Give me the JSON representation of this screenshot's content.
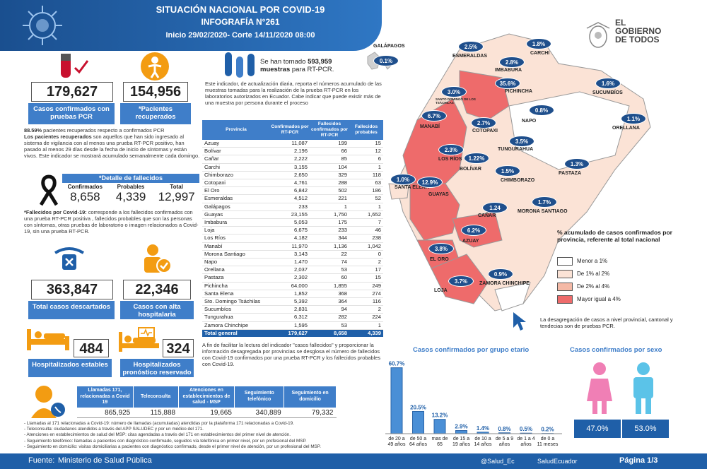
{
  "header": {
    "title": "SITUACIÓN NACIONAL POR  COVID-19",
    "subtitle": "INFOGRAFÍA N°261",
    "date": "Inicio 29/02/2020- Corte 14/11/2020 08:00"
  },
  "logo": {
    "line1": "EL",
    "line2": "GOBIERNO",
    "line3": "DE TODOS"
  },
  "confirmed": {
    "value": "179,627",
    "label": "Casos confirmados con pruebas PCR"
  },
  "recovered": {
    "value": "154,956",
    "label": "*Pacientes recuperados"
  },
  "recovered_note": {
    "pct": "88.59%",
    "t1": " pacientes recuperados respecto a confirmados PCR",
    "bold": "Los pacientes recuperados",
    "t2": " son aquellos que han sido ingresado al sistema de vigilancia con al menos una prueba RT-PCR positivo, han pasado al menos 29 días desde la fecha de inicio de síntomas y están vivos. Este indicador se mostrará acumulado semanalmente cada domingo."
  },
  "deaths": {
    "title": "*Detalle de fallecidos",
    "h_confirmed": "Confirmados",
    "h_probable": "Probables",
    "h_total": "Total",
    "confirmed": "8,658",
    "probable": "4,339",
    "total": "12,997"
  },
  "deaths_note": {
    "bold": "*Fallecidos por Covid-19:",
    "text": " corresponde a los fallecidos confirmados con una prueba RT-PCR positiva , fallecidos probables que son las personas con síntomas, otras pruebas de laboratorio o imagen relacionados a Covid-19, sin una prueba RT-PCR."
  },
  "discarded": {
    "value": "363,847",
    "label": "Total casos descartados"
  },
  "discharged": {
    "value": "22,346",
    "label": "Casos con alta hospitalaria"
  },
  "hosp_stable": {
    "value": "484",
    "label": "Hospitalizados estables"
  },
  "hosp_reserved": {
    "value": "324",
    "label": "Hospitalizados pronóstico reservado"
  },
  "tests": {
    "t1": "Se han tomado ",
    "value": "593,959",
    "t2": "muestras",
    "t3": " para RT-PCR."
  },
  "tests_note": "Este indicador, de actualización diaria, reporta el números acumulado de las muestras tomadas para la realización de la prueba RT-PCR en los laboratorios autorizados en Ecuador. Cabe indicar que puede existir más de una muestra por persona durante el proceso",
  "table": {
    "headers": [
      "Provincia",
      "Confirmados por RT-PCR",
      "Fallecidos confirmados por RT-PCR",
      "Fallecidos probables"
    ],
    "rows": [
      [
        "Azuay",
        "11,087",
        "199",
        "15"
      ],
      [
        "Bolívar",
        "2,196",
        "66",
        "12"
      ],
      [
        "Cañar",
        "2,222",
        "85",
        "6"
      ],
      [
        "Carchi",
        "3,155",
        "104",
        "1"
      ],
      [
        "Chimborazo",
        "2,650",
        "329",
        "118"
      ],
      [
        "Cotopaxi",
        "4,761",
        "288",
        "63"
      ],
      [
        "El Oro",
        "6,842",
        "502",
        "186"
      ],
      [
        "Esmeraldas",
        "4,512",
        "221",
        "52"
      ],
      [
        "Galápagos",
        "233",
        "1",
        "1"
      ],
      [
        "Guayas",
        "23,155",
        "1,750",
        "1,652"
      ],
      [
        "Imbabura",
        "5,053",
        "175",
        "7"
      ],
      [
        "Loja",
        "6,675",
        "233",
        "46"
      ],
      [
        "Los Ríos",
        "4,182",
        "344",
        "238"
      ],
      [
        "Manabí",
        "11,970",
        "1,136",
        "1,042"
      ],
      [
        "Morona Santiago",
        "3,143",
        "22",
        "0"
      ],
      [
        "Napo",
        "1,470",
        "74",
        "2"
      ],
      [
        "Orellana",
        "2,037",
        "53",
        "17"
      ],
      [
        "Pastaza",
        "2,302",
        "60",
        "15"
      ],
      [
        "Pichincha",
        "64,000",
        "1,855",
        "249"
      ],
      [
        "Santa Elena",
        "1,852",
        "368",
        "274"
      ],
      [
        "Sto. Domingo Tsáchilas",
        "5,392",
        "364",
        "116"
      ],
      [
        "Sucumbíos",
        "2,831",
        "94",
        "2"
      ],
      [
        "Tungurahua",
        "6,312",
        "282",
        "224"
      ],
      [
        "Zamora Chinchipe",
        "1,595",
        "53",
        "1"
      ]
    ],
    "total": [
      "Total general",
      "179,627",
      "8,658",
      "4,339"
    ]
  },
  "table_note": "A fin de facilitar la lectura del indicador \"casos fallecidos\" y proporcionar la información desagregada por provincias se desglosa el número de fallecidos con Covid-19 confirmados por una prueba RT-PCR y los fallecidos probables con Covid-19.",
  "calls": {
    "headers": [
      "Llamadas 171, relacionadas a Covid 19",
      "Teleconsulta",
      "Atenciones en establecimientos de salud - MSP",
      "Seguimiento telefónico",
      "Seguimiento en domicilio"
    ],
    "values": [
      "865,925",
      "115,888",
      "19,665",
      "340,889",
      "79,332"
    ]
  },
  "calls_notes": [
    "- Llamadas al 171 relacionadas a Covid-19: número de llamadas (acumuladas) atendidas por la plataforma 171 relacionadas a Covid-19.",
    "- Teleconsulta: ciudadanos atendidos a través del APP SALUDEC y por un médico del 171.",
    "- Atenciones en establecimientos de salud del MSP: citas agendadas a través del 171 en establecimientos del primer nivel de atención.",
    "- Seguimiento telefónico: llamadas a pacientes con diagnóstico confirmado, seguidos vía telefónica en primer nivel, por un profesional del MSP.",
    "- Seguimiento en domicilio: visitas domiciliarias a pacientes con diagnóstico confirmado, desde el primer nivel de atención, por un profesional del MSP."
  ],
  "map": {
    "provinces": [
      {
        "name": "GALÁPAGOS",
        "pct": "0.1%"
      },
      {
        "name": "ESMERALDAS",
        "pct": "2.5%"
      },
      {
        "name": "CARCHI",
        "pct": "1.8%"
      },
      {
        "name": "IMBABURA",
        "pct": "2.8%"
      },
      {
        "name": "SUCUMBÍOS",
        "pct": "1.6%"
      },
      {
        "name": "PICHINCHA",
        "pct": "35.6%"
      },
      {
        "name": "SANTO DOMINGO DE LOS TSÁCHILAS",
        "pct": "3.0%"
      },
      {
        "name": "MANABÍ",
        "pct": "6.7%"
      },
      {
        "name": "NAPO",
        "pct": "0.8%"
      },
      {
        "name": "ORELLANA",
        "pct": "1.1%"
      },
      {
        "name": "COTOPAXI",
        "pct": "2.7%"
      },
      {
        "name": "LOS RÍOS",
        "pct": "2.3%"
      },
      {
        "name": "TUNGURAHUA",
        "pct": "3.5%"
      },
      {
        "name": "BOLÍVAR",
        "pct": "1.22%"
      },
      {
        "name": "PASTAZA",
        "pct": "1.3%"
      },
      {
        "name": "SANTA ELENA",
        "pct": "1.0%"
      },
      {
        "name": "GUAYAS",
        "pct": "12.9%"
      },
      {
        "name": "CHIMBORAZO",
        "pct": "1.5%"
      },
      {
        "name": "CAÑAR",
        "pct": "1.24"
      },
      {
        "name": "MORONA SANTIAGO",
        "pct": "1.7%"
      },
      {
        "name": "AZUAY",
        "pct": "6.2%"
      },
      {
        "name": "EL ORO",
        "pct": "3.8%"
      },
      {
        "name": "LOJA",
        "pct": "3.7%"
      },
      {
        "name": "ZAMORA CHINCHIPE",
        "pct": "0.9%"
      }
    ],
    "legend_title": "% acumulado de casos confirmados por provincia, referente al total nacional",
    "legend": [
      {
        "label": "Menor a 1%",
        "color": "#ffffff"
      },
      {
        "label": "De 1% al 2%",
        "color": "#fbe3d6"
      },
      {
        "label": "De 2% al 4%",
        "color": "#f4b9a6"
      },
      {
        "label": "Mayor igual a 4%",
        "color": "#ee6b6b"
      }
    ],
    "note": "La desagregación de casos a nivel provincial, cantonal y tendecias son  de pruebas PCR."
  },
  "chart_data": [
    {
      "type": "bar",
      "title": "Casos confirmados por grupo etario",
      "categories": [
        "de 20 a 49 años",
        "de 50 a 64 años",
        "mas de 65",
        "de 15 a 19 años",
        "de 10 a 14 años",
        "de 5 a 9 años",
        "de 1 a 4 años",
        "de 0 a 11 meses"
      ],
      "values": [
        60.7,
        20.5,
        13.2,
        2.9,
        1.4,
        0.8,
        0.5,
        0.2
      ],
      "labels": [
        "60.7%",
        "20.5%",
        "13.2%",
        "2.9%",
        "1.4%",
        "0.8%",
        "0.5%",
        "0.2%"
      ],
      "ylim": [
        0,
        65
      ]
    },
    {
      "type": "bar",
      "title": "Casos confirmados por sexo",
      "categories": [
        "Mujeres",
        "Hombres"
      ],
      "values": [
        47.0,
        53.0
      ],
      "labels": [
        "47.0%",
        "53.0%"
      ]
    }
  ],
  "footer": {
    "source_label": "Fuente:",
    "source": "Ministerio de Salud Pública",
    "twitter": "@Salud_Ec",
    "facebook": "SaludEcuador",
    "page": "Página 1/3"
  },
  "colors": {
    "primary": "#1f5fa8",
    "accent": "#3f7ec9",
    "red": "#c8102e",
    "orange": "#f39c12"
  }
}
